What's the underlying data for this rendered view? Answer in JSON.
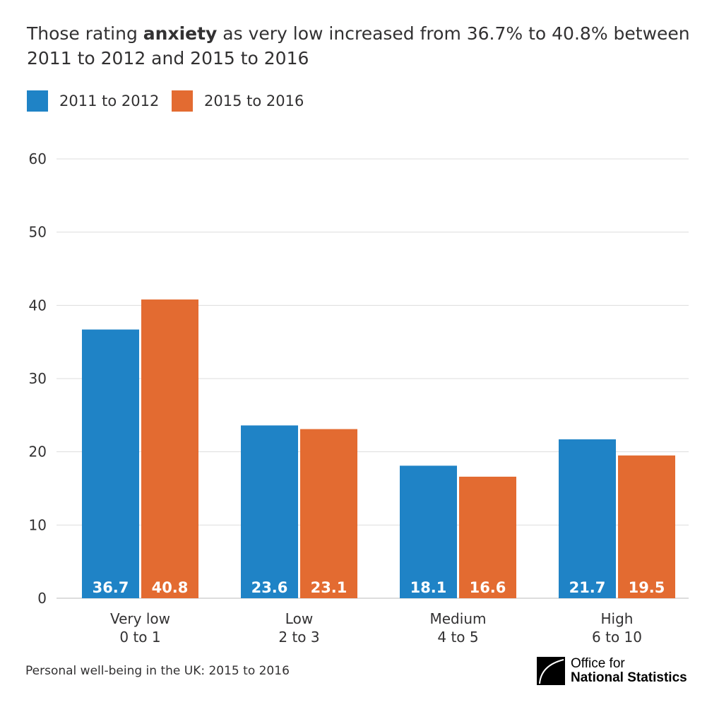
{
  "title": {
    "pre": "Those rating ",
    "bold": "anxiety",
    "post": " as very low increased from 36.7% to 40.8% between 2011 to 2012 and 2015 to 2016"
  },
  "source": "Personal well-being in the UK: 2015 to 2016",
  "logo": {
    "line1": "Office for",
    "line2": "National Statistics"
  },
  "chart_data": {
    "type": "bar",
    "categories": [
      [
        "Very low",
        "0 to 1"
      ],
      [
        "Low",
        "2 to 3"
      ],
      [
        "Medium",
        "4 to 5"
      ],
      [
        "High",
        "6 to 10"
      ]
    ],
    "series": [
      {
        "name": "2011 to 2012",
        "color": "#1f83c6",
        "values": [
          36.7,
          23.6,
          18.1,
          21.7
        ]
      },
      {
        "name": "2015 to 2016",
        "color": "#e36b31",
        "values": [
          40.8,
          23.1,
          16.6,
          19.5
        ]
      }
    ],
    "ylim": [
      0,
      60
    ],
    "yticks": [
      0,
      10,
      20,
      30,
      40,
      50,
      60
    ],
    "grid": true,
    "legend": "top-left",
    "data_labels": true
  }
}
